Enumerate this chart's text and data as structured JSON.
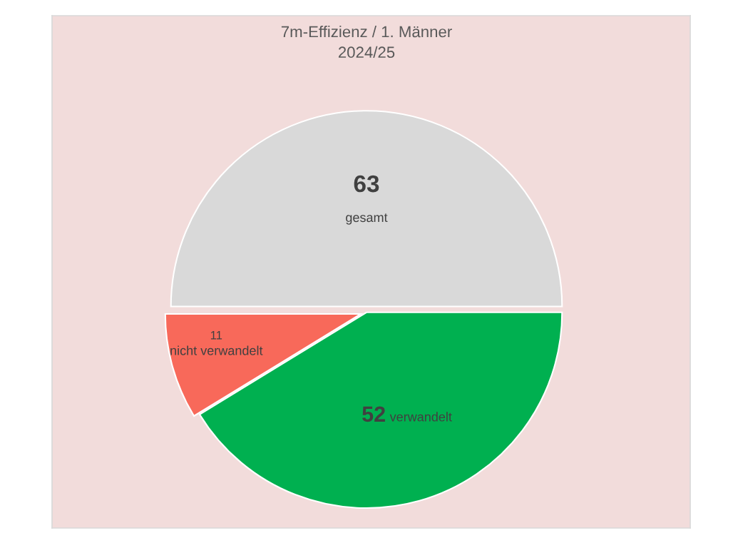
{
  "chart_data": {
    "type": "pie",
    "title": "7m-Effizienz / 1. Männer\n2024/25",
    "categories": [
      "gesamt",
      "verwandelt",
      "nicht verwandelt"
    ],
    "values": [
      63,
      52,
      11
    ],
    "colors": [
      "#d9d9d9",
      "#00b050",
      "#f8695a"
    ],
    "data_labels": true,
    "legend": false
  }
}
